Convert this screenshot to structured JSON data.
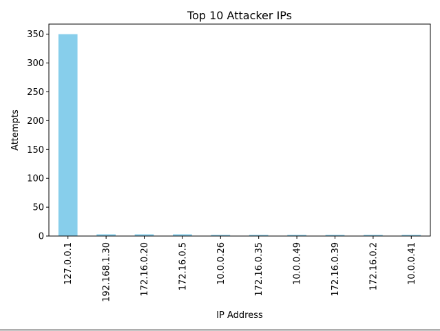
{
  "chart_data": {
    "type": "bar",
    "title": "Top 10 Attacker IPs",
    "xlabel": "IP Address",
    "ylabel": "Attempts",
    "categories": [
      "127.0.0.1",
      "192.168.1.30",
      "172.16.0.20",
      "172.16.0.5",
      "10.0.0.26",
      "172.16.0.35",
      "10.0.0.49",
      "172.16.0.39",
      "172.16.0.2",
      "10.0.0.41"
    ],
    "values": [
      350,
      3,
      3,
      3,
      2,
      2,
      2,
      2,
      2,
      2
    ],
    "yticks": [
      0,
      50,
      100,
      150,
      200,
      250,
      300,
      350
    ],
    "ylim": [
      0,
      367.5
    ],
    "bar_color": "#87ceeb",
    "grid": false,
    "legend": "none"
  }
}
